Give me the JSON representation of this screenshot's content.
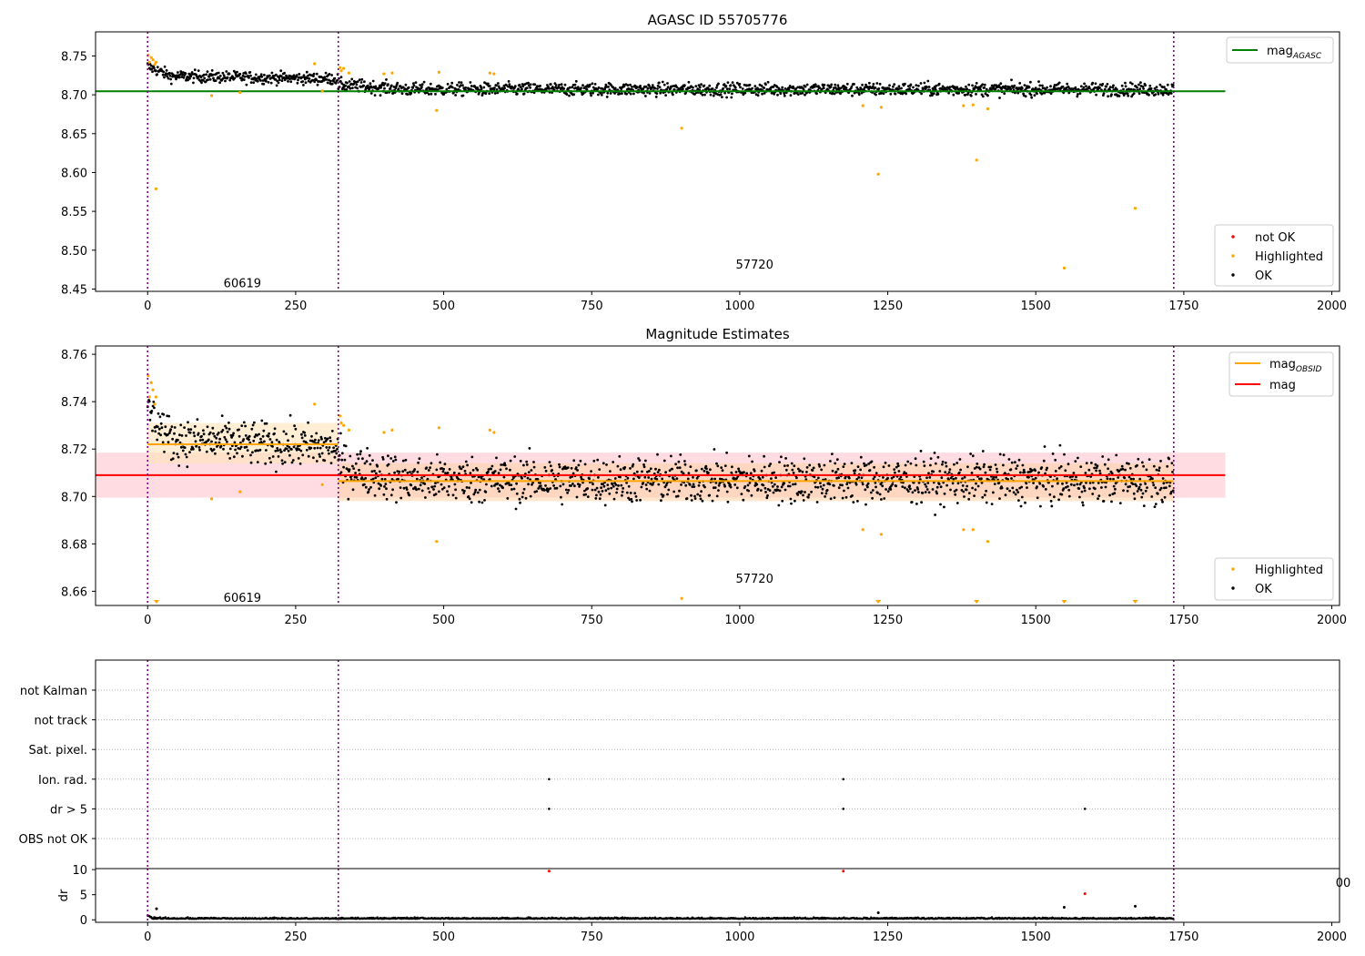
{
  "chart_data": [
    {
      "type": "scatter",
      "title": "AGASC ID 55705776",
      "x_range": [
        -88,
        2013
      ],
      "y_range": [
        8.447,
        8.781
      ],
      "y_ticks": [
        8.45,
        8.5,
        8.55,
        8.6,
        8.65,
        8.7,
        8.75
      ],
      "x_ticks": [
        0,
        250,
        500,
        750,
        1000,
        1250,
        1500,
        1750,
        2000
      ],
      "vlines": [
        0,
        322,
        1733
      ],
      "obsid_labels": [
        {
          "text": "60619",
          "x": 160,
          "y": 8.458
        },
        {
          "text": "57720",
          "x": 1025,
          "y": 8.482
        }
      ],
      "lines": [
        {
          "name": "mag_AGASC",
          "label_main": "mag",
          "label_sub": "AGASC",
          "color": "#008000",
          "width": 2,
          "x0": -88,
          "x1": 1820,
          "y": 8.7046
        }
      ],
      "band_segments": [
        {
          "x0": 0,
          "x1": 322,
          "mean": 8.7225,
          "amp": 0.005,
          "trend": 0.004
        },
        {
          "x0": 322,
          "x1": 1733,
          "mean": 8.707,
          "amp": 0.0055,
          "trend": 0.0
        }
      ],
      "ok_series": {
        "name": "OK",
        "color": "#000000"
      },
      "highlighted": {
        "name": "Highlighted",
        "color": "#ffa500",
        "points": [
          [
            1,
            8.751
          ],
          [
            3,
            8.742
          ],
          [
            6,
            8.748
          ],
          [
            9,
            8.745
          ],
          [
            12,
            8.739
          ],
          [
            14,
            8.742
          ],
          [
            14,
            8.579
          ],
          [
            108,
            8.699
          ],
          [
            156,
            8.703
          ],
          [
            282,
            8.74
          ],
          [
            295,
            8.705
          ],
          [
            325,
            8.735
          ],
          [
            327,
            8.731
          ],
          [
            331,
            8.734
          ],
          [
            340,
            8.728
          ],
          [
            399,
            8.727
          ],
          [
            413,
            8.728
          ],
          [
            488,
            8.68
          ],
          [
            492,
            8.729
          ],
          [
            578,
            8.728
          ],
          [
            585,
            8.727
          ],
          [
            902,
            8.657
          ],
          [
            1208,
            8.686
          ],
          [
            1234,
            8.598
          ],
          [
            1239,
            8.684
          ],
          [
            1378,
            8.686
          ],
          [
            1394,
            8.687
          ],
          [
            1400,
            8.616
          ],
          [
            1419,
            8.682
          ],
          [
            1548,
            8.477
          ],
          [
            1668,
            8.554
          ]
        ]
      },
      "legends": [
        {
          "position": "upper right",
          "entries": [
            {
              "label": "mag",
              "sub": "AGASC",
              "kind": "line",
              "color": "#008000"
            }
          ]
        },
        {
          "position": "lower right",
          "entries": [
            {
              "label": "not OK",
              "kind": "marker",
              "color": "#ff0000"
            },
            {
              "label": "Highlighted",
              "kind": "marker",
              "color": "#ffa500"
            },
            {
              "label": "OK",
              "kind": "marker",
              "color": "#000000"
            }
          ]
        }
      ]
    },
    {
      "type": "scatter",
      "title": "Magnitude Estimates",
      "x_range": [
        -88,
        2013
      ],
      "y_range": [
        8.654,
        8.7635
      ],
      "y_ticks": [
        8.66,
        8.68,
        8.7,
        8.72,
        8.74,
        8.76
      ],
      "x_ticks": [
        0,
        250,
        500,
        750,
        1000,
        1250,
        1500,
        1750,
        2000
      ],
      "vlines": [
        0,
        322,
        1733
      ],
      "obsid_labels": [
        {
          "text": "60619",
          "x": 160,
          "y": 8.6575
        },
        {
          "text": "57720",
          "x": 1025,
          "y": 8.6655
        }
      ],
      "bands": [
        {
          "name": "mag range",
          "x0": -88,
          "x1": 1820,
          "y0": 8.6995,
          "y1": 8.7185,
          "color": "#ffc0c8",
          "opacity": 0.55
        },
        {
          "name": "mag_OBSID 60619 range",
          "x0": 0,
          "x1": 322,
          "y0": 8.714,
          "y1": 8.731,
          "color": "#ffe2b8",
          "opacity": 0.6
        },
        {
          "name": "mag_OBSID 57720 range",
          "x0": 322,
          "x1": 1733,
          "y0": 8.698,
          "y1": 8.714,
          "color": "#ffd4a8",
          "opacity": 0.55
        }
      ],
      "lines": [
        {
          "name": "mag",
          "label_main": "mag",
          "color": "#ff0000",
          "width": 2,
          "x0": -88,
          "x1": 1820,
          "y": 8.709
        },
        {
          "name": "mag_OBSID 60619",
          "color": "#ffa500",
          "width": 2,
          "x0": 0,
          "x1": 322,
          "y": 8.722
        },
        {
          "name": "mag_OBSID 57720",
          "label_main": "mag",
          "label_sub": "OBSID",
          "color": "#ffa500",
          "width": 2,
          "x0": 322,
          "x1": 1733,
          "y": 8.7065
        }
      ],
      "band_segments": [
        {
          "x0": 0,
          "x1": 322,
          "mean": 8.7225,
          "amp": 0.006,
          "trend": 0.004
        },
        {
          "x0": 322,
          "x1": 1733,
          "mean": 8.707,
          "amp": 0.0065,
          "trend": 0.0
        }
      ],
      "ok_series": {
        "name": "OK",
        "color": "#000000"
      },
      "highlighted": {
        "name": "Highlighted",
        "color": "#ffa500",
        "points": [
          [
            1,
            8.751
          ],
          [
            3,
            8.742
          ],
          [
            6,
            8.748
          ],
          [
            9,
            8.745
          ],
          [
            12,
            8.739
          ],
          [
            14,
            8.742
          ],
          [
            108,
            8.699
          ],
          [
            156,
            8.702
          ],
          [
            282,
            8.739
          ],
          [
            295,
            8.705
          ],
          [
            325,
            8.734
          ],
          [
            327,
            8.731
          ],
          [
            331,
            8.73
          ],
          [
            340,
            8.728
          ],
          [
            399,
            8.727
          ],
          [
            413,
            8.728
          ],
          [
            488,
            8.681
          ],
          [
            492,
            8.729
          ],
          [
            578,
            8.728
          ],
          [
            585,
            8.727
          ],
          [
            902,
            8.657
          ],
          [
            1208,
            8.686
          ],
          [
            1239,
            8.684
          ],
          [
            1378,
            8.686
          ],
          [
            1394,
            8.686
          ],
          [
            1419,
            8.681
          ]
        ]
      },
      "clipped_markers": {
        "color": "#ffa500",
        "x": [
          15,
          1234,
          1400,
          1548,
          1668
        ]
      },
      "legends": [
        {
          "position": "upper right",
          "entries": [
            {
              "label": "mag",
              "sub": "OBSID",
              "kind": "line",
              "color": "#ffa500"
            },
            {
              "label": "mag",
              "kind": "line",
              "color": "#ff0000"
            }
          ]
        },
        {
          "position": "lower right",
          "entries": [
            {
              "label": "Highlighted",
              "kind": "marker",
              "color": "#ffa500"
            },
            {
              "label": "OK",
              "kind": "marker",
              "color": "#000000"
            }
          ]
        }
      ]
    },
    {
      "type": "scatter",
      "title": "",
      "x_range": [
        -88,
        2013
      ],
      "categories": [
        "OBS not OK",
        "dr > 5",
        "Ion. rad.",
        "Sat. pixel.",
        "not track",
        "not Kalman"
      ],
      "vlines": [
        0,
        322,
        1733
      ],
      "flag_points": [
        {
          "category": "Ion. rad.",
          "x": [
            678,
            1175
          ]
        },
        {
          "category": "dr > 5",
          "x": [
            678,
            1175,
            1583
          ]
        }
      ]
    },
    {
      "type": "scatter",
      "title": "",
      "ylabel": "dr",
      "x_range": [
        -88,
        2013
      ],
      "y_range": [
        -0.5,
        10.2
      ],
      "y_ticks": [
        0,
        5,
        10
      ],
      "x_ticks": [
        0,
        250,
        500,
        750,
        1000,
        1250,
        1500,
        1750,
        2000
      ],
      "vlines": [
        0,
        322,
        1733
      ],
      "overflow_label": "00",
      "dr_outliers": [
        {
          "x": 678,
          "y": 9.7,
          "color": "#ff0000"
        },
        {
          "x": 1175,
          "y": 9.7,
          "color": "#ff0000"
        },
        {
          "x": 1583,
          "y": 5.2,
          "color": "#ff0000"
        },
        {
          "x": 15,
          "y": 2.2,
          "color": "#000000"
        },
        {
          "x": 1548,
          "y": 2.5,
          "color": "#000000"
        },
        {
          "x": 1668,
          "y": 2.7,
          "color": "#000000"
        },
        {
          "x": 1234,
          "y": 1.4,
          "color": "#000000"
        }
      ]
    }
  ]
}
